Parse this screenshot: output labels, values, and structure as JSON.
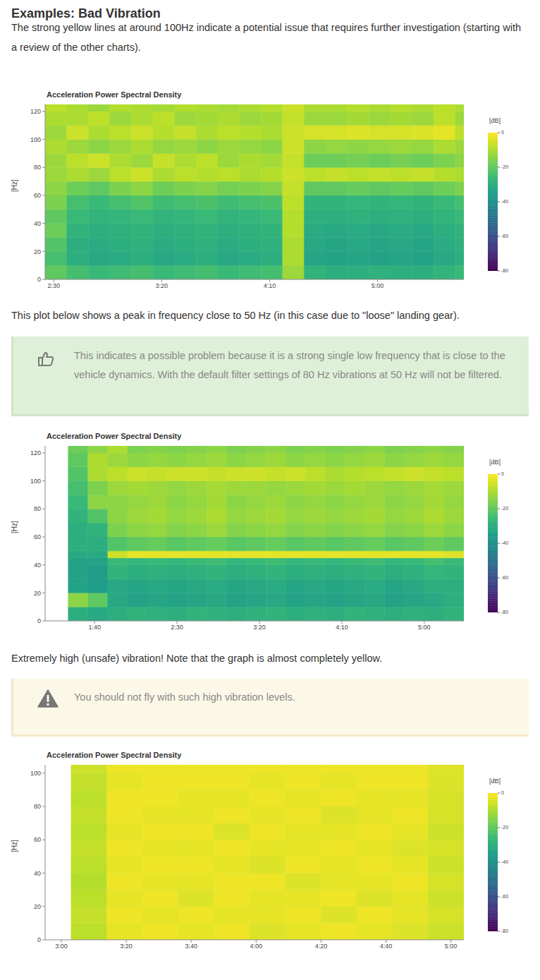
{
  "document": {
    "heading": "Examples: Bad Vibration",
    "paragraphs": [
      "The strong yellow lines at around 100Hz indicate a potential issue that requires further investigation (starting with a review of the other charts).",
      "This plot below shows a peak in frequency close to 50 Hz (in this case due to \"loose\" landing gear).",
      "Extremely high (unsafe) vibration! Note that the graph is almost completely yellow."
    ],
    "tip": "This indicates a possible problem because it is a strong single low frequency that is close to the vehicle dynamics. With the default filter settings of 80 Hz vibrations at 50 Hz will not be filtered.",
    "warning": "You should not fly with such high vibration levels."
  },
  "chart_data": [
    {
      "type": "heatmap",
      "title": "Acceleration Power Spectral Density",
      "ylabel": "[Hz]",
      "xlim": [
        146,
        340
      ],
      "xticks": [
        {
          "value": 150,
          "label": "2:30"
        },
        {
          "value": 200,
          "label": "3:20"
        },
        {
          "value": 250,
          "label": "4:10"
        },
        {
          "value": 300,
          "label": "5:00"
        }
      ],
      "ylim": [
        0,
        125
      ],
      "yticks": [
        0,
        20,
        40,
        60,
        80,
        100,
        120
      ],
      "x_bins": [
        146,
        156,
        166,
        176,
        186,
        196,
        206,
        216,
        226,
        236,
        246,
        256,
        266,
        276,
        286,
        296,
        306,
        316,
        326,
        336,
        340
      ],
      "y_bins": [
        0,
        10,
        20,
        30,
        40,
        50,
        60,
        70,
        80,
        90,
        100,
        110,
        120,
        125
      ],
      "cells": [
        [
          -20,
          -24,
          -26,
          -25,
          -24,
          -26,
          -25,
          -24,
          -26,
          -25,
          -24,
          -12,
          -28,
          -30,
          -30,
          -29,
          -30,
          -30,
          -28,
          -26
        ],
        [
          -24,
          -30,
          -32,
          -31,
          -30,
          -32,
          -31,
          -30,
          -32,
          -31,
          -30,
          -10,
          -33,
          -34,
          -33,
          -34,
          -33,
          -34,
          -32,
          -30
        ],
        [
          -22,
          -30,
          -31,
          -30,
          -29,
          -31,
          -30,
          -29,
          -31,
          -30,
          -29,
          -10,
          -32,
          -33,
          -32,
          -33,
          -32,
          -33,
          -31,
          -29
        ],
        [
          -18,
          -28,
          -30,
          -29,
          -28,
          -30,
          -29,
          -28,
          -30,
          -29,
          -28,
          -9,
          -31,
          -32,
          -31,
          -32,
          -31,
          -32,
          -30,
          -28
        ],
        [
          -20,
          -26,
          -28,
          -27,
          -26,
          -28,
          -27,
          -26,
          -28,
          -27,
          -26,
          -9,
          -30,
          -30,
          -29,
          -30,
          -29,
          -30,
          -28,
          -26
        ],
        [
          -16,
          -24,
          -26,
          -24,
          -22,
          -25,
          -24,
          -23,
          -25,
          -24,
          -23,
          -8,
          -28,
          -28,
          -27,
          -28,
          -27,
          -28,
          -26,
          -24
        ],
        [
          -14,
          -18,
          -20,
          -16,
          -14,
          -18,
          -16,
          -15,
          -17,
          -16,
          -15,
          -7,
          -20,
          -20,
          -19,
          -20,
          -19,
          -20,
          -18,
          -16
        ],
        [
          -12,
          -10,
          -12,
          -8,
          -6,
          -10,
          -8,
          -9,
          -8,
          -10,
          -9,
          -6,
          -8,
          -7,
          -8,
          -7,
          -8,
          -7,
          -9,
          -10
        ],
        [
          -12,
          -8,
          -6,
          -10,
          -12,
          -7,
          -10,
          -8,
          -12,
          -10,
          -11,
          -7,
          -18,
          -18,
          -17,
          -18,
          -17,
          -18,
          -16,
          -14
        ],
        [
          -10,
          -12,
          -14,
          -12,
          -10,
          -13,
          -12,
          -14,
          -12,
          -13,
          -14,
          -6,
          -14,
          -13,
          -14,
          -13,
          -12,
          -13,
          -10,
          -12
        ],
        [
          -12,
          -6,
          -10,
          -8,
          -6,
          -9,
          -7,
          -10,
          -8,
          -9,
          -10,
          -6,
          -5,
          -5,
          -4,
          -5,
          -5,
          -4,
          -3,
          -8
        ],
        [
          -10,
          -10,
          -8,
          -12,
          -10,
          -8,
          -12,
          -11,
          -10,
          -12,
          -11,
          -7,
          -12,
          -12,
          -11,
          -12,
          -11,
          -12,
          -8,
          -12
        ],
        [
          -8,
          -10,
          -12,
          -9,
          -10,
          -11,
          -9,
          -10,
          -11,
          -10,
          -9,
          -6,
          -10,
          -10,
          -9,
          -10,
          -9,
          -10,
          -8,
          -10
        ]
      ],
      "colorbar": {
        "label": "[dB]",
        "range": [
          -80,
          0
        ],
        "ticks": [
          0,
          -20,
          -40,
          -60,
          -80
        ]
      }
    },
    {
      "type": "heatmap",
      "title": "Acceleration Power Spectral Density",
      "ylabel": "[Hz]",
      "xlim": [
        70,
        324
      ],
      "xticks": [
        {
          "value": 100,
          "label": "1:40"
        },
        {
          "value": 150,
          "label": "2:30"
        },
        {
          "value": 200,
          "label": "3:20"
        },
        {
          "value": 250,
          "label": "4:10"
        },
        {
          "value": 300,
          "label": "5:00"
        }
      ],
      "ylim": [
        0,
        125
      ],
      "yticks": [
        0,
        20,
        40,
        60,
        80,
        100,
        120
      ],
      "x_bins": [
        84,
        96,
        108,
        120,
        132,
        144,
        156,
        168,
        180,
        192,
        204,
        216,
        228,
        240,
        252,
        264,
        276,
        288,
        300,
        312,
        324
      ],
      "y_bins": [
        0,
        10,
        20,
        30,
        40,
        45,
        50,
        60,
        70,
        80,
        90,
        100,
        110,
        120,
        125
      ],
      "cells": [
        [
          -30,
          -32,
          -30,
          -28,
          -29,
          -30,
          -28,
          -29,
          -30,
          -29,
          -28,
          -30,
          -29,
          -30,
          -28,
          -29,
          -30,
          -29,
          -30,
          -28
        ],
        [
          -14,
          -20,
          -32,
          -34,
          -33,
          -34,
          -33,
          -32,
          -34,
          -33,
          -32,
          -34,
          -33,
          -34,
          -33,
          -32,
          -34,
          -33,
          -32,
          -30
        ],
        [
          -34,
          -36,
          -32,
          -33,
          -32,
          -33,
          -32,
          -31,
          -33,
          -32,
          -31,
          -33,
          -32,
          -33,
          -32,
          -31,
          -33,
          -32,
          -30,
          -30
        ],
        [
          -34,
          -36,
          -28,
          -30,
          -29,
          -30,
          -29,
          -28,
          -30,
          -29,
          -28,
          -30,
          -29,
          -30,
          -29,
          -28,
          -30,
          -29,
          -27,
          -28
        ],
        [
          -34,
          -34,
          -26,
          -27,
          -26,
          -27,
          -26,
          -25,
          -27,
          -26,
          -25,
          -27,
          -26,
          -27,
          -26,
          -25,
          -27,
          -26,
          -24,
          -26
        ],
        [
          -32,
          -32,
          -6,
          -3,
          -3,
          -3,
          -3,
          -3,
          -3,
          -3,
          -3,
          -3,
          -3,
          -3,
          -3,
          -3,
          -3,
          -3,
          -3,
          -4
        ],
        [
          -30,
          -30,
          -22,
          -20,
          -19,
          -21,
          -20,
          -19,
          -21,
          -20,
          -19,
          -21,
          -20,
          -21,
          -20,
          -19,
          -21,
          -20,
          -18,
          -20
        ],
        [
          -30,
          -28,
          -16,
          -14,
          -13,
          -15,
          -14,
          -12,
          -15,
          -14,
          -13,
          -15,
          -14,
          -15,
          -14,
          -13,
          -15,
          -14,
          -12,
          -14
        ],
        [
          -28,
          -22,
          -14,
          -12,
          -11,
          -13,
          -12,
          -10,
          -13,
          -12,
          -11,
          -13,
          -12,
          -13,
          -12,
          -11,
          -13,
          -12,
          -10,
          -12
        ],
        [
          -26,
          -14,
          -14,
          -13,
          -12,
          -14,
          -13,
          -11,
          -14,
          -13,
          -12,
          -14,
          -13,
          -14,
          -13,
          -12,
          -14,
          -13,
          -11,
          -13
        ],
        [
          -24,
          -16,
          -12,
          -11,
          -12,
          -13,
          -12,
          -11,
          -12,
          -12,
          -13,
          -12,
          -11,
          -12,
          -11,
          -12,
          -13,
          -12,
          -11,
          -12
        ],
        [
          -22,
          -10,
          -8,
          -6,
          -7,
          -6,
          -6,
          -7,
          -6,
          -6,
          -7,
          -6,
          -8,
          -10,
          -9,
          -8,
          -7,
          -6,
          -7,
          -8
        ],
        [
          -20,
          -10,
          -12,
          -14,
          -13,
          -14,
          -13,
          -12,
          -14,
          -13,
          -12,
          -14,
          -13,
          -14,
          -13,
          -12,
          -14,
          -13,
          -12,
          -13
        ],
        [
          -18,
          -14,
          -10,
          -16,
          -15,
          -16,
          -15,
          -14,
          -16,
          -15,
          -14,
          -16,
          -15,
          -16,
          -15,
          -14,
          -16,
          -15,
          -14,
          -15
        ]
      ],
      "colorbar": {
        "label": "[dB]",
        "range": [
          -80,
          0
        ],
        "ticks": [
          0,
          -20,
          -40,
          -60,
          -80
        ]
      }
    },
    {
      "type": "heatmap",
      "title": "Acceleration Power Spectral Density",
      "ylabel": "[Hz]",
      "xlim": [
        175,
        304
      ],
      "xticks": [
        {
          "value": 180,
          "label": "3:00"
        },
        {
          "value": 200,
          "label": "3:20"
        },
        {
          "value": 220,
          "label": "3:40"
        },
        {
          "value": 240,
          "label": "4:00"
        },
        {
          "value": 260,
          "label": "4:20"
        },
        {
          "value": 280,
          "label": "4:40"
        },
        {
          "value": 300,
          "label": "5:00"
        }
      ],
      "ylim": [
        0,
        105
      ],
      "yticks": [
        0,
        20,
        40,
        60,
        80,
        100
      ],
      "x_bins": [
        183,
        194,
        205,
        216,
        227,
        238,
        249,
        260,
        271,
        282,
        293,
        304
      ],
      "y_bins": [
        0,
        10,
        20,
        30,
        40,
        50,
        60,
        70,
        80,
        90,
        100,
        105
      ],
      "cells": [
        [
          -8,
          -3,
          -2,
          -3,
          -2,
          -4,
          -3,
          -2,
          -3,
          -4,
          -6
        ],
        [
          -7,
          -2,
          -3,
          -2,
          -3,
          -3,
          -2,
          -4,
          -2,
          -3,
          -5
        ],
        [
          -8,
          -3,
          -2,
          -4,
          -2,
          -3,
          -3,
          -2,
          -4,
          -3,
          -6
        ],
        [
          -9,
          -2,
          -3,
          -3,
          -2,
          -2,
          -4,
          -3,
          -3,
          -2,
          -5
        ],
        [
          -8,
          -3,
          -2,
          -2,
          -3,
          -4,
          -2,
          -3,
          -2,
          -3,
          -6
        ],
        [
          -7,
          -2,
          -3,
          -3,
          -2,
          -3,
          -3,
          -2,
          -3,
          -4,
          -5
        ],
        [
          -8,
          -3,
          -2,
          -2,
          -4,
          -2,
          -3,
          -3,
          -2,
          -3,
          -6
        ],
        [
          -7,
          -2,
          -3,
          -3,
          -2,
          -3,
          -2,
          -4,
          -3,
          -2,
          -5
        ],
        [
          -8,
          -2,
          -2,
          -3,
          -3,
          -2,
          -3,
          -2,
          -3,
          -3,
          -5
        ],
        [
          -7,
          -3,
          -2,
          -2,
          -2,
          -3,
          -2,
          -3,
          -2,
          -2,
          -4
        ],
        [
          -6,
          -2,
          -2,
          -2,
          -2,
          -2,
          -2,
          -2,
          -2,
          -2,
          -4
        ]
      ],
      "colorbar": {
        "label": "[dB]",
        "range": [
          -80,
          0
        ],
        "ticks": [
          0,
          -20,
          -40,
          -60,
          -80
        ]
      }
    }
  ]
}
